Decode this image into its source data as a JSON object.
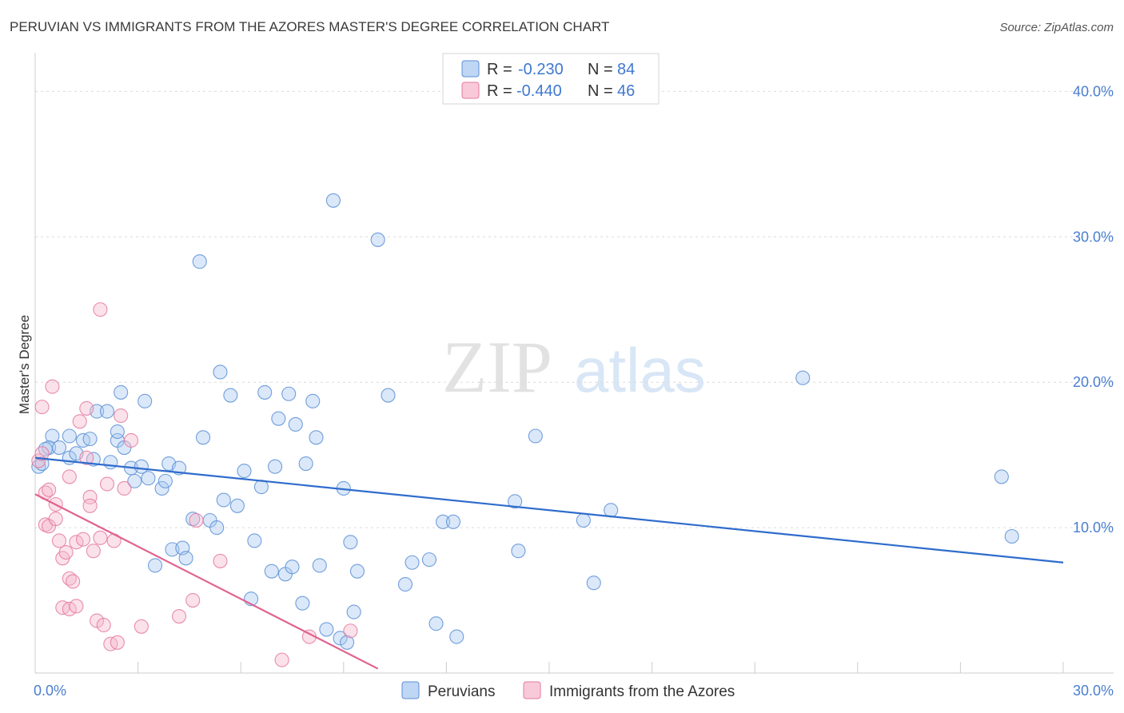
{
  "chart_data": {
    "type": "scatter",
    "title": "PERUVIAN VS IMMIGRANTS FROM THE AZORES MASTER'S DEGREE CORRELATION CHART",
    "source": "Source: ZipAtlas.com",
    "ylabel": "Master's Degree",
    "xlim": [
      0,
      30
    ],
    "ylim": [
      0,
      42
    ],
    "x_tick_labels": {
      "min": "0.0%",
      "max": "30.0%"
    },
    "y_ticks": [
      {
        "value": 10,
        "label": "10.0%"
      },
      {
        "value": 20,
        "label": "20.0%"
      },
      {
        "value": 30,
        "label": "30.0%"
      },
      {
        "value": 40,
        "label": "40.0%"
      }
    ],
    "watermark": {
      "zip": "ZIP",
      "atlas": "atlas"
    },
    "legend": [
      {
        "r_label": "R =",
        "r_value": "-0.230",
        "n_label": "N =",
        "n_value": "84"
      },
      {
        "r_label": "R =",
        "r_value": "-0.440",
        "n_label": "N =",
        "n_value": "46"
      }
    ],
    "series": [
      {
        "name": "Peruvians",
        "color": "#a9c8f0",
        "stroke": "#5b8fd6",
        "line_color": "#2f6ccc",
        "trend": {
          "x": [
            0,
            30
          ],
          "y": [
            14.8,
            7.6
          ]
        },
        "points": [
          [
            0.1,
            14.2
          ],
          [
            0.5,
            16.3
          ],
          [
            0.4,
            15.5
          ],
          [
            0.3,
            15.4
          ],
          [
            0.7,
            15.5
          ],
          [
            1.0,
            14.8
          ],
          [
            1.2,
            15.1
          ],
          [
            1.0,
            16.3
          ],
          [
            1.4,
            16.0
          ],
          [
            1.6,
            16.1
          ],
          [
            1.7,
            14.7
          ],
          [
            1.8,
            18.0
          ],
          [
            2.1,
            18.0
          ],
          [
            2.2,
            14.5
          ],
          [
            2.4,
            16.0
          ],
          [
            2.4,
            16.6
          ],
          [
            2.5,
            19.3
          ],
          [
            2.6,
            15.5
          ],
          [
            2.8,
            14.1
          ],
          [
            2.9,
            13.2
          ],
          [
            3.1,
            14.2
          ],
          [
            3.2,
            18.7
          ],
          [
            3.3,
            13.4
          ],
          [
            3.5,
            7.4
          ],
          [
            3.7,
            12.7
          ],
          [
            3.8,
            13.2
          ],
          [
            3.9,
            14.4
          ],
          [
            4.0,
            8.5
          ],
          [
            4.2,
            14.1
          ],
          [
            4.3,
            8.6
          ],
          [
            4.4,
            7.9
          ],
          [
            4.6,
            10.6
          ],
          [
            4.8,
            28.3
          ],
          [
            4.9,
            16.2
          ],
          [
            5.1,
            10.5
          ],
          [
            5.3,
            10.0
          ],
          [
            5.4,
            20.7
          ],
          [
            5.5,
            11.9
          ],
          [
            5.7,
            19.1
          ],
          [
            5.9,
            11.5
          ],
          [
            6.1,
            13.9
          ],
          [
            6.3,
            5.1
          ],
          [
            6.4,
            9.1
          ],
          [
            6.6,
            12.8
          ],
          [
            6.7,
            19.3
          ],
          [
            6.9,
            7.0
          ],
          [
            7.0,
            14.2
          ],
          [
            7.1,
            17.5
          ],
          [
            7.3,
            6.8
          ],
          [
            7.4,
            19.2
          ],
          [
            7.5,
            7.3
          ],
          [
            7.6,
            17.1
          ],
          [
            7.8,
            4.8
          ],
          [
            7.9,
            14.4
          ],
          [
            8.1,
            18.7
          ],
          [
            8.2,
            16.2
          ],
          [
            8.3,
            7.4
          ],
          [
            8.5,
            3.0
          ],
          [
            8.7,
            32.5
          ],
          [
            8.9,
            2.4
          ],
          [
            9.0,
            12.7
          ],
          [
            9.1,
            2.1
          ],
          [
            9.2,
            9.0
          ],
          [
            9.3,
            4.2
          ],
          [
            9.4,
            7.0
          ],
          [
            10.0,
            29.8
          ],
          [
            10.3,
            19.1
          ],
          [
            10.8,
            6.1
          ],
          [
            11.0,
            7.6
          ],
          [
            11.5,
            7.8
          ],
          [
            11.7,
            3.4
          ],
          [
            11.9,
            10.4
          ],
          [
            12.2,
            10.4
          ],
          [
            12.3,
            2.5
          ],
          [
            14.0,
            11.8
          ],
          [
            14.1,
            8.4
          ],
          [
            14.6,
            16.3
          ],
          [
            16.0,
            10.5
          ],
          [
            16.3,
            6.2
          ],
          [
            16.8,
            11.2
          ],
          [
            22.4,
            20.3
          ],
          [
            28.2,
            13.5
          ],
          [
            28.5,
            9.4
          ],
          [
            0.2,
            14.4
          ]
        ]
      },
      {
        "name": "Immigrants from the Azores",
        "color": "#f6b8cc",
        "stroke": "#e47aa0",
        "line_color": "#e0628f",
        "trend": {
          "x": [
            0,
            10
          ],
          "y": [
            12.3,
            0.3
          ]
        },
        "points": [
          [
            0.1,
            14.6
          ],
          [
            0.2,
            15.1
          ],
          [
            0.2,
            18.3
          ],
          [
            0.3,
            12.4
          ],
          [
            0.3,
            10.2
          ],
          [
            0.4,
            12.6
          ],
          [
            0.4,
            10.1
          ],
          [
            0.5,
            19.7
          ],
          [
            0.6,
            11.6
          ],
          [
            0.6,
            10.6
          ],
          [
            0.7,
            9.1
          ],
          [
            0.8,
            4.5
          ],
          [
            0.8,
            7.9
          ],
          [
            0.9,
            8.3
          ],
          [
            1.0,
            13.5
          ],
          [
            1.0,
            4.4
          ],
          [
            1.0,
            6.5
          ],
          [
            1.1,
            6.3
          ],
          [
            1.2,
            9.0
          ],
          [
            1.2,
            4.6
          ],
          [
            1.3,
            17.3
          ],
          [
            1.4,
            9.2
          ],
          [
            1.5,
            14.8
          ],
          [
            1.5,
            18.2
          ],
          [
            1.6,
            12.1
          ],
          [
            1.6,
            11.5
          ],
          [
            1.7,
            8.4
          ],
          [
            1.8,
            3.6
          ],
          [
            1.9,
            9.3
          ],
          [
            1.9,
            25.0
          ],
          [
            2.0,
            3.3
          ],
          [
            2.1,
            13.0
          ],
          [
            2.2,
            2.0
          ],
          [
            2.3,
            9.1
          ],
          [
            2.4,
            2.1
          ],
          [
            2.5,
            17.7
          ],
          [
            2.6,
            12.7
          ],
          [
            2.8,
            16.0
          ],
          [
            3.1,
            3.2
          ],
          [
            4.2,
            3.9
          ],
          [
            4.6,
            5.0
          ],
          [
            4.7,
            10.5
          ],
          [
            5.4,
            7.7
          ],
          [
            7.2,
            0.9
          ],
          [
            8.0,
            2.5
          ],
          [
            9.2,
            2.9
          ]
        ]
      }
    ]
  }
}
